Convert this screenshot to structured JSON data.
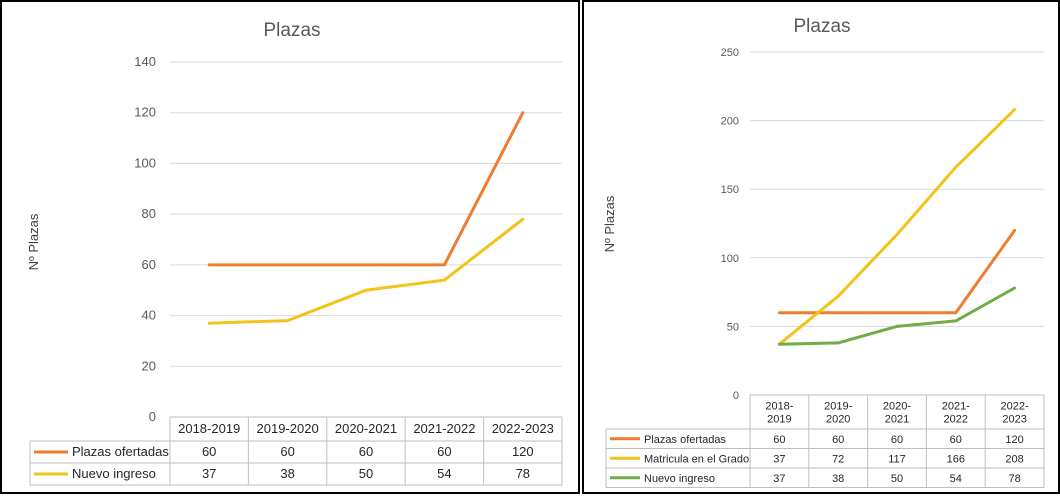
{
  "chart_data": [
    {
      "type": "line",
      "title": "Plazas",
      "ylabel": "Nº Plazas",
      "xlabel": "",
      "categories": [
        "2018-2019",
        "2019-2020",
        "2020-2021",
        "2021-2022",
        "2022-2023"
      ],
      "ylim": [
        0,
        140
      ],
      "yticks": [
        "0",
        "20",
        "40",
        "60",
        "80",
        "100",
        "120",
        "140"
      ],
      "grid": true,
      "legend": "data-table",
      "series": [
        {
          "name": "Plazas ofertadas",
          "color": "#ED7D31",
          "values": [
            60,
            60,
            60,
            60,
            120
          ],
          "labels": [
            "60",
            "60",
            "60",
            "60",
            "120"
          ]
        },
        {
          "name": "Nuevo ingreso",
          "color": "#F2C318",
          "values": [
            37,
            38,
            50,
            54,
            78
          ],
          "labels": [
            "37",
            "38",
            "50",
            "54",
            "78"
          ]
        }
      ]
    },
    {
      "type": "line",
      "title": "Plazas",
      "ylabel": "Nº Plazas",
      "xlabel": "",
      "categories": [
        "2018-\n2019",
        "2019-\n2020",
        "2020-\n2021",
        "2021-\n2022",
        "2022-\n2023"
      ],
      "ylim": [
        0,
        250
      ],
      "yticks": [
        "0",
        "50",
        "100",
        "150",
        "200",
        "250"
      ],
      "grid": true,
      "legend": "data-table",
      "series": [
        {
          "name": "Plazas ofertadas",
          "color": "#ED7D31",
          "values": [
            60,
            60,
            60,
            60,
            120
          ],
          "labels": [
            "60",
            "60",
            "60",
            "60",
            "120"
          ]
        },
        {
          "name": "Matricula en el Grado",
          "color": "#F2C318",
          "values": [
            37,
            72,
            117,
            166,
            208
          ],
          "labels": [
            "37",
            "72",
            "117",
            "166",
            "208"
          ]
        },
        {
          "name": "Nuevo ingreso",
          "color": "#70AD47",
          "values": [
            37,
            38,
            50,
            54,
            78
          ],
          "labels": [
            "37",
            "38",
            "50",
            "54",
            "78"
          ]
        }
      ]
    }
  ]
}
